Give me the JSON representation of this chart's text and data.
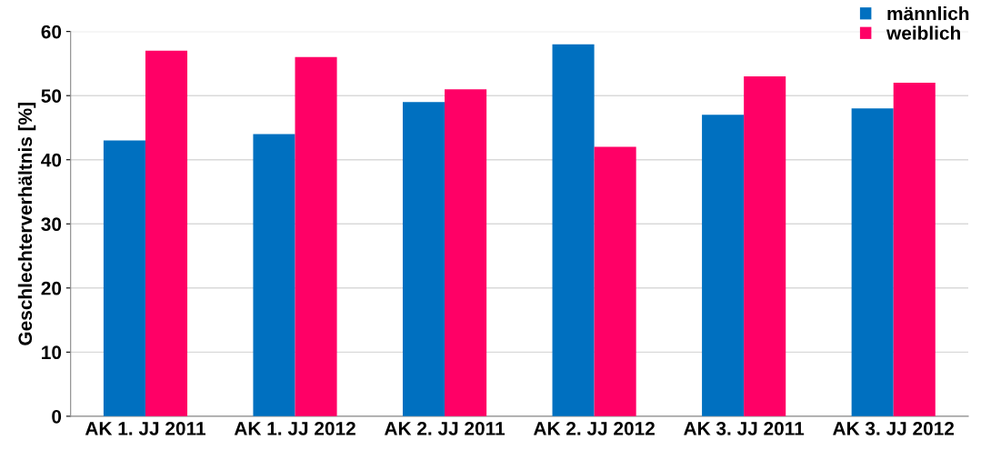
{
  "chart_data": {
    "type": "bar",
    "ylabel": "Geschlechterverhältnis [%]",
    "categories": [
      "AK 1. JJ 2011",
      "AK 1. JJ 2012",
      "AK 2. JJ 2011",
      "AK 2. JJ 2012",
      "AK 3. JJ 2011",
      "AK 3. JJ 2012"
    ],
    "series": [
      {
        "name": "männlich",
        "color": "#0070c0",
        "values": [
          43,
          44,
          49,
          58,
          47,
          48
        ]
      },
      {
        "name": "weiblich",
        "color": "#ff0066",
        "values": [
          57,
          56,
          51,
          42,
          53,
          52
        ]
      }
    ],
    "ylim": [
      0,
      60
    ],
    "yticks": [
      0,
      10,
      20,
      30,
      40,
      50,
      60
    ],
    "grid": "y",
    "legend": "top right"
  }
}
